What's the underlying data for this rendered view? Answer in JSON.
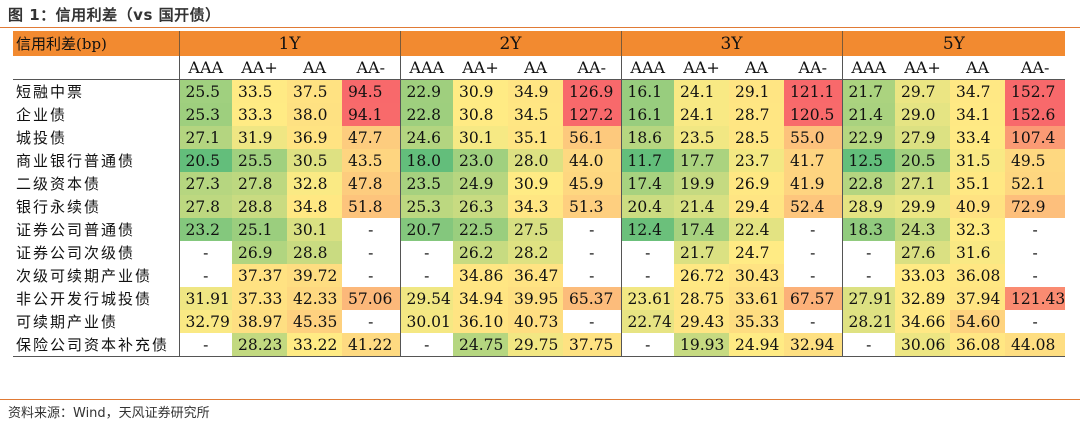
{
  "title": "图 1：信用利差（vs 国开债）",
  "header": {
    "label": "信用利差(bp)",
    "groups": [
      "1Y",
      "2Y",
      "3Y",
      "5Y"
    ],
    "ratings": [
      "AAA",
      "AA+",
      "AA",
      "AA-"
    ]
  },
  "rows": [
    {
      "label": "短融中票",
      "values": [
        "25.5",
        "33.5",
        "37.5",
        "94.5",
        "22.9",
        "30.9",
        "34.9",
        "126.9",
        "16.1",
        "24.1",
        "29.1",
        "121.1",
        "21.7",
        "29.7",
        "34.7",
        "152.7"
      ]
    },
    {
      "label": "企业债",
      "values": [
        "25.3",
        "33.3",
        "38.0",
        "94.1",
        "22.8",
        "30.8",
        "34.5",
        "127.2",
        "16.1",
        "24.1",
        "28.7",
        "120.5",
        "21.4",
        "29.0",
        "34.1",
        "152.6"
      ]
    },
    {
      "label": "城投债",
      "values": [
        "27.1",
        "31.9",
        "36.9",
        "47.7",
        "24.6",
        "30.1",
        "35.1",
        "56.1",
        "18.6",
        "23.5",
        "28.5",
        "55.0",
        "22.9",
        "27.9",
        "33.4",
        "107.4"
      ]
    },
    {
      "label": "商业银行普通债",
      "values": [
        "20.5",
        "25.5",
        "30.5",
        "43.5",
        "18.0",
        "23.0",
        "28.0",
        "44.0",
        "11.7",
        "17.7",
        "23.7",
        "41.7",
        "12.5",
        "20.5",
        "31.5",
        "49.5"
      ]
    },
    {
      "label": "二级资本债",
      "values": [
        "27.3",
        "27.8",
        "32.8",
        "47.8",
        "23.5",
        "24.9",
        "30.9",
        "45.9",
        "17.4",
        "19.9",
        "26.9",
        "41.9",
        "22.8",
        "27.1",
        "35.1",
        "52.1"
      ]
    },
    {
      "label": "银行永续债",
      "values": [
        "27.8",
        "28.8",
        "34.8",
        "51.8",
        "25.3",
        "26.3",
        "34.3",
        "51.3",
        "20.4",
        "21.4",
        "29.4",
        "52.4",
        "28.9",
        "29.9",
        "40.9",
        "72.9"
      ]
    },
    {
      "label": "证券公司普通债",
      "values": [
        "23.2",
        "25.1",
        "30.1",
        "-",
        "20.7",
        "22.5",
        "27.5",
        "-",
        "12.4",
        "17.4",
        "22.4",
        "-",
        "18.3",
        "24.3",
        "32.3",
        "-"
      ]
    },
    {
      "label": "证券公司次级债",
      "values": [
        "-",
        "26.9",
        "28.8",
        "-",
        "-",
        "26.2",
        "28.2",
        "-",
        "-",
        "21.7",
        "24.7",
        "-",
        "-",
        "27.6",
        "31.6",
        "-"
      ]
    },
    {
      "label": "次级可续期产业债",
      "values": [
        "-",
        "37.37",
        "39.72",
        "-",
        "-",
        "34.86",
        "36.47",
        "-",
        "-",
        "26.72",
        "30.43",
        "-",
        "-",
        "33.03",
        "36.08",
        "-"
      ]
    },
    {
      "label": "非公开发行城投债",
      "values": [
        "31.91",
        "37.33",
        "42.33",
        "57.06",
        "29.54",
        "34.94",
        "39.95",
        "65.37",
        "23.61",
        "28.75",
        "33.61",
        "67.57",
        "27.91",
        "32.89",
        "37.94",
        "121.43"
      ]
    },
    {
      "label": "可续期产业债",
      "values": [
        "32.79",
        "38.97",
        "45.35",
        "-",
        "30.01",
        "36.10",
        "40.73",
        "-",
        "22.74",
        "29.43",
        "35.33",
        "-",
        "28.21",
        "34.66",
        "54.60",
        "-"
      ]
    },
    {
      "label": "保险公司资本补充债",
      "values": [
        "-",
        "28.23",
        "33.22",
        "41.22",
        "-",
        "24.75",
        "29.75",
        "37.75",
        "-",
        "19.93",
        "24.94",
        "32.94",
        "-",
        "30.06",
        "36.08",
        "44.08"
      ]
    }
  ],
  "colors": {
    "header_bg": "#f28a30",
    "rule": "#e07a35",
    "scale_low": "#63be7b",
    "scale_mid": "#ffeb84",
    "scale_high": "#f8696b"
  },
  "source": "资料来源：Wind，天风证券研究所"
}
